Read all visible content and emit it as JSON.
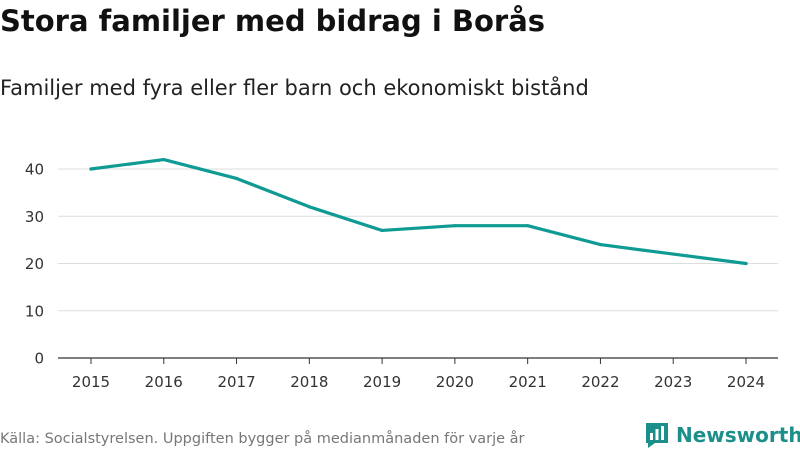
{
  "header": {
    "title": "Stora familjer med bidrag i Borås",
    "subtitle": "Familjer med fyra eller fler barn och ekonomiskt bistånd"
  },
  "footer": {
    "source": "Källa: Socialstyrelsen. Uppgiften bygger på medianmånaden för varje år",
    "brand": "Newsworthy"
  },
  "colors": {
    "line": "#0f9b93",
    "grid": "#dddddd",
    "axis": "#333333",
    "brand": "#1d8f8a"
  },
  "chart_data": {
    "type": "line",
    "title": "Stora familjer med bidrag i Borås",
    "subtitle": "Familjer med fyra eller fler barn och ekonomiskt bistånd",
    "xlabel": "",
    "ylabel": "",
    "categories": [
      "2015",
      "2016",
      "2017",
      "2018",
      "2019",
      "2020",
      "2021",
      "2022",
      "2023",
      "2024"
    ],
    "series": [
      {
        "name": "Familjer",
        "values": [
          40,
          42,
          38,
          32,
          27,
          28,
          28,
          24,
          22,
          20
        ]
      }
    ],
    "ylim": [
      0,
      40
    ],
    "yticks": [
      0,
      10,
      20,
      30,
      40
    ],
    "grid": true,
    "legend": "none"
  }
}
